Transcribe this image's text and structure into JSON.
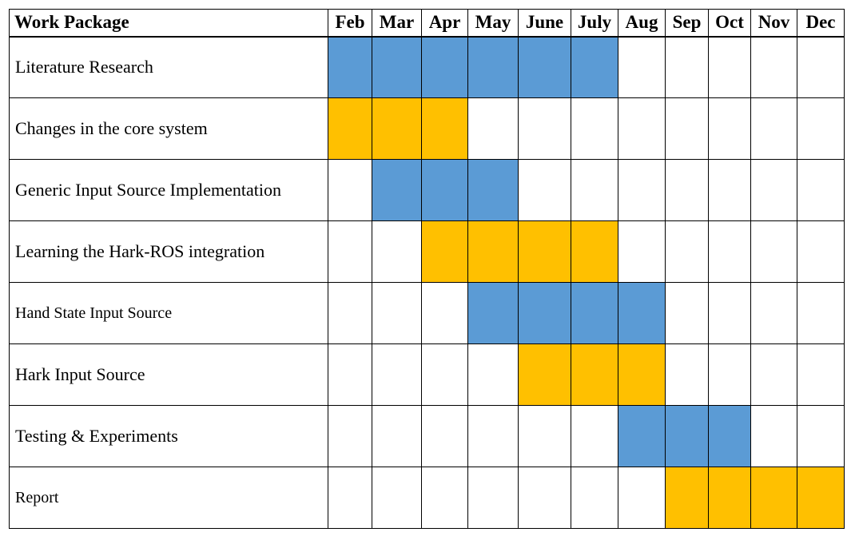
{
  "header": {
    "work_package": "Work Package",
    "months": [
      "Feb",
      "Mar",
      "Apr",
      "May",
      "June",
      "July",
      "Aug",
      "Sep",
      "Oct",
      "Nov",
      "Dec"
    ]
  },
  "colors": {
    "blue": "#5b9bd5",
    "orange": "#ffc000",
    "empty": "#ffffff"
  },
  "rows": [
    {
      "label": "Literature Research",
      "color": "blue",
      "start": 0,
      "end": 5
    },
    {
      "label": "Changes in the core system",
      "color": "orange",
      "start": 0,
      "end": 2
    },
    {
      "label": "Generic Input Source Implementation",
      "color": "blue",
      "start": 1,
      "end": 3
    },
    {
      "label": "Learning the Hark-ROS integration",
      "color": "orange",
      "start": 2,
      "end": 5
    },
    {
      "label": "Hand State Input Source",
      "color": "blue",
      "start": 3,
      "end": 6
    },
    {
      "label": "Hark Input Source",
      "color": "orange",
      "start": 4,
      "end": 6
    },
    {
      "label": "Testing & Experiments",
      "color": "blue",
      "start": 6,
      "end": 8
    },
    {
      "label": "Report",
      "color": "orange",
      "start": 7,
      "end": 10
    }
  ]
}
